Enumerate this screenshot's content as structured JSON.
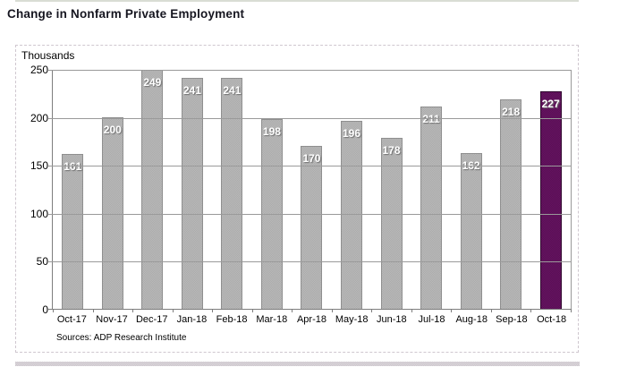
{
  "title": "Change in Nonfarm Private Employment",
  "units_label": "Thousands",
  "sources_note": "Sources: ADP Research Institute",
  "colors": {
    "bar": "#ababab",
    "bar_light": "#b9b9b9",
    "bar_border": "#8f8f8f",
    "highlight": "#5a1055",
    "highlight_light": "#641260",
    "highlight_border": "#30082e",
    "grid": "#9a9a9a",
    "axis": "#7d7d7d",
    "title_color": "#15151f",
    "value_label_shadow": "#6f6f6f"
  },
  "chart_data": {
    "type": "bar",
    "title": "Change in Nonfarm Private Employment",
    "ylabel": "Thousands",
    "xlabel": "",
    "categories": [
      "Oct-17",
      "Nov-17",
      "Dec-17",
      "Jan-18",
      "Feb-18",
      "Mar-18",
      "Apr-18",
      "May-18",
      "Jun-18",
      "Jul-18",
      "Aug-18",
      "Sep-18",
      "Oct-18"
    ],
    "values": [
      161,
      200,
      249,
      241,
      241,
      198,
      170,
      196,
      178,
      211,
      162,
      218,
      227
    ],
    "highlight_index": 12,
    "ylim": [
      0,
      250
    ],
    "ytick_interval": 50,
    "grid": true,
    "legend": false,
    "value_labels": "inside-top, white bold"
  }
}
